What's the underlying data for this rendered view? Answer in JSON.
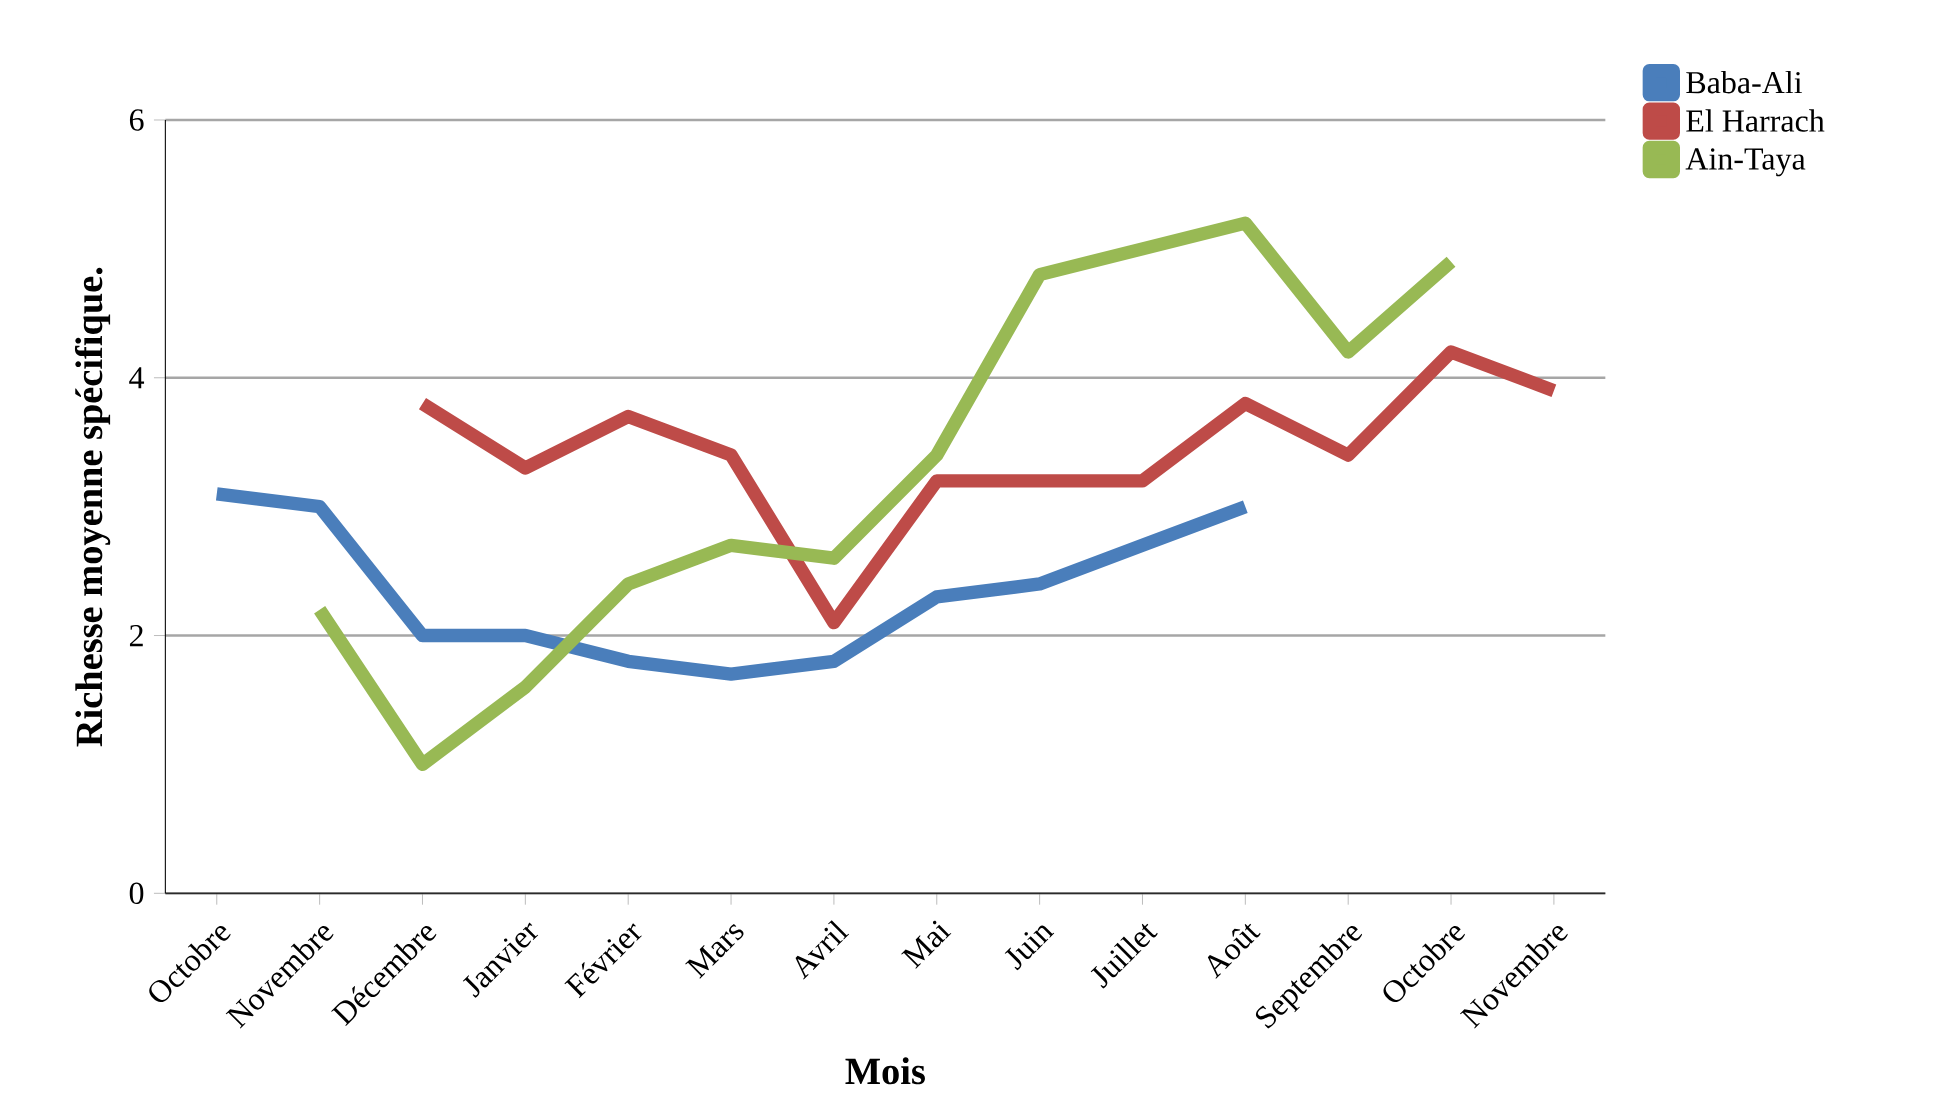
{
  "chart_data": {
    "type": "line",
    "xlabel": "Mois",
    "ylabel": "Richesse moyenne spécifique.",
    "categories": [
      "Octobre",
      "Novembre",
      "Décembre",
      "Janvier",
      "Février",
      "Mars",
      "Avril",
      "Mai",
      "Juin",
      "Juillet",
      "Août",
      "Septembre",
      "Octobre",
      "Novembre"
    ],
    "series": [
      {
        "name": "Baba-Ali",
        "color": "#4a7ebb",
        "values": [
          3.1,
          3.0,
          2.0,
          2.0,
          1.8,
          1.7,
          1.8,
          2.3,
          2.4,
          2.7,
          3.0,
          null,
          null,
          null
        ]
      },
      {
        "name": "El Harrach",
        "color": "#be4b48",
        "values": [
          null,
          null,
          3.8,
          3.3,
          3.7,
          3.4,
          2.1,
          3.2,
          3.2,
          3.2,
          3.8,
          3.4,
          4.2,
          3.9
        ]
      },
      {
        "name": "Ain-Taya",
        "color": "#98b954",
        "values": [
          null,
          2.2,
          1.0,
          1.6,
          2.4,
          2.7,
          2.6,
          3.4,
          4.8,
          5.0,
          5.2,
          4.2,
          4.9,
          null
        ]
      }
    ],
    "ylim": [
      0,
      6
    ],
    "yticks": [
      0,
      2,
      4,
      6
    ],
    "grid": "y",
    "legend": "top right",
    "marker": "none",
    "line_style": "solid"
  }
}
